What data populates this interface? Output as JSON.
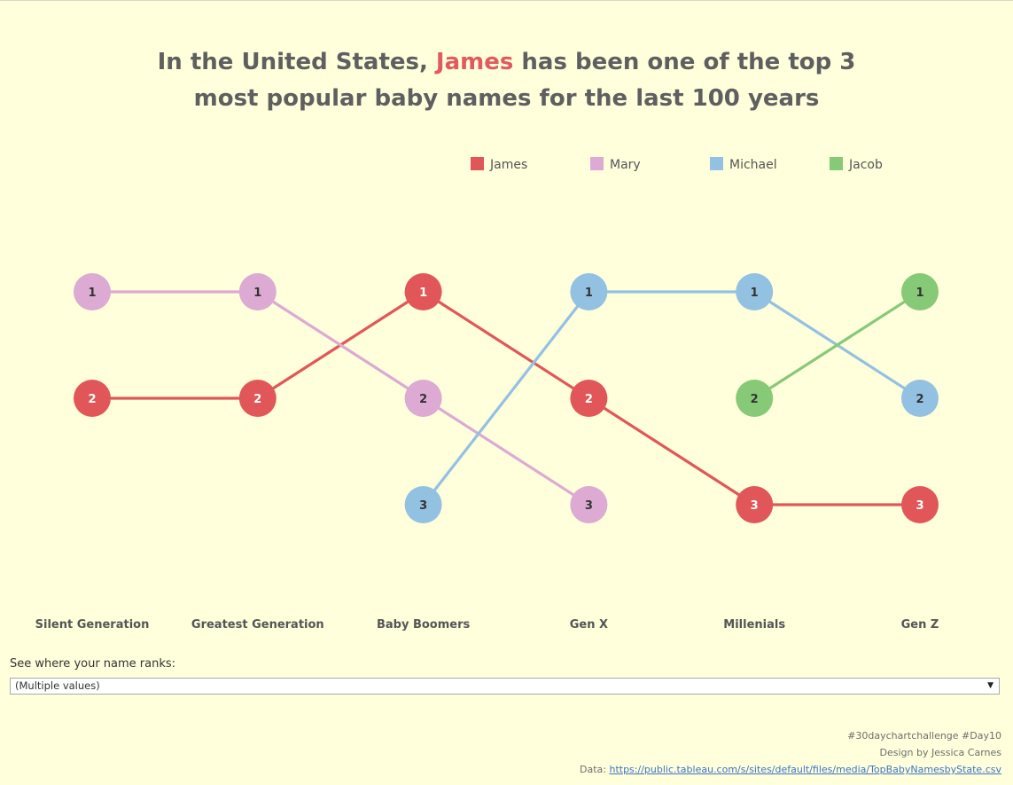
{
  "title": {
    "line1_pre": "In the United States, ",
    "line1_highlight": "James",
    "line1_post": " has been one of the top 3",
    "line2": "most popular baby names for the last 100 years"
  },
  "chart_data": {
    "type": "line",
    "categories": [
      "Silent Generation",
      "Greatest Generation",
      "Baby Boomers",
      "Gen X",
      "Millenials",
      "Gen Z"
    ],
    "y_axis": "rank",
    "ylim": [
      1,
      3
    ],
    "y_reversed": true,
    "legend_position": "top-right",
    "grid": false,
    "series": [
      {
        "name": "James",
        "color": "#e15759",
        "ranks": [
          2,
          2,
          1,
          2,
          3,
          3
        ]
      },
      {
        "name": "Mary",
        "color": "#dcaad2",
        "ranks": [
          1,
          1,
          2,
          3,
          null,
          null
        ]
      },
      {
        "name": "Michael",
        "color": "#93c1e1",
        "ranks": [
          null,
          null,
          3,
          1,
          1,
          2
        ]
      },
      {
        "name": "Jacob",
        "color": "#86c977",
        "ranks": [
          null,
          null,
          null,
          null,
          2,
          1
        ]
      }
    ]
  },
  "filter": {
    "label": "See where your name ranks:",
    "value": "(Multiple values)"
  },
  "credits": {
    "line1": "#30daychartchallenge #Day10",
    "line2": "Design by Jessica Carnes",
    "data_prefix": "Data: ",
    "data_link": "https://public.tableau.com/s/sites/default/files/media/TopBabyNamesbyState.csv"
  }
}
